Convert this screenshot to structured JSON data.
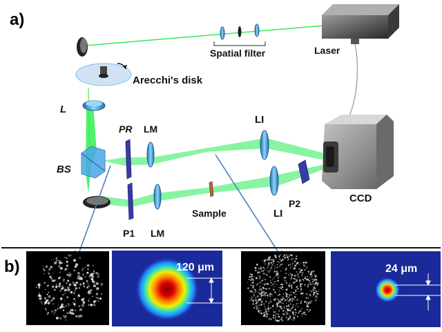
{
  "panels": {
    "a": "a)",
    "b": "b)"
  },
  "labels": {
    "laser": "Laser",
    "spatial_filter": "Spatial filter",
    "arecchi_disk": "Arecchi's disk",
    "lens_l": "L",
    "pr": "PR",
    "lm_top": "LM",
    "li_top": "LI",
    "bs": "BS",
    "ccd": "CCD",
    "p2": "P2",
    "li_bottom": "LI",
    "sample": "Sample",
    "p1": "P1",
    "lm_bottom": "LM"
  },
  "measurements": {
    "left": "120 μm",
    "right": "24 μm"
  },
  "colors": {
    "beam": "#33ee55",
    "lens": "#4fb4e8",
    "polarizer": "#3a3aa8",
    "body_gray": "#8a8a8a",
    "pointer": "#4a7fb8",
    "heatmap_bg": "#1a2a9a"
  }
}
